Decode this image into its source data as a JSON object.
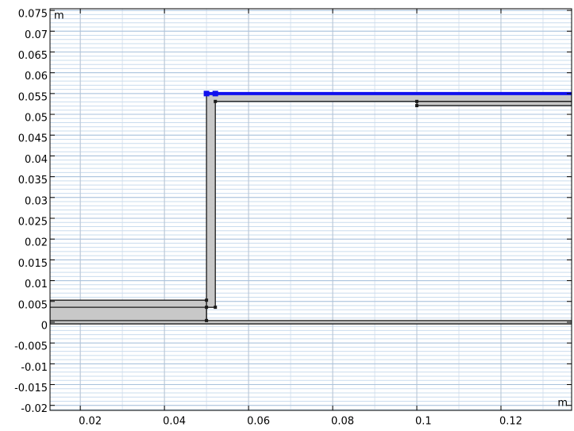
{
  "chart_data": {
    "type": "geometry",
    "x_unit": "m",
    "y_unit": "m",
    "xlim": [
      0.0128,
      0.1368
    ],
    "ylim": [
      -0.0212,
      0.0754
    ],
    "xticks": [
      0.02,
      0.04,
      0.06,
      0.08,
      0.1,
      0.12
    ],
    "yticks": [
      0.075,
      0.07,
      0.065,
      0.06,
      0.055,
      0.05,
      0.045,
      0.04,
      0.035,
      0.03,
      0.025,
      0.02,
      0.015,
      0.01,
      0.005,
      0,
      -0.005,
      -0.01,
      -0.015,
      -0.02
    ],
    "grid": true,
    "domain_color": "#c8c8c8",
    "edge_color": "#1a1a1a",
    "selection_color": "#1010ee",
    "domains": [
      [
        [
          0.0128,
          -0.0004
        ],
        [
          0.1368,
          -0.0004
        ],
        [
          0.1368,
          0.0004
        ],
        [
          0.0128,
          0.0004
        ]
      ],
      [
        [
          0.0128,
          0.0004
        ],
        [
          0.05,
          0.0004
        ],
        [
          0.05,
          0.0053
        ],
        [
          0.0128,
          0.0053
        ]
      ],
      [
        [
          0.05,
          0.0004
        ],
        [
          0.05,
          0.055
        ],
        [
          0.1368,
          0.055
        ],
        [
          0.1368,
          0.0531
        ],
        [
          0.0521,
          0.0531
        ],
        [
          0.0521,
          0.0036
        ],
        [
          0.05,
          0.0036
        ]
      ],
      [
        [
          0.1,
          0.0521
        ],
        [
          0.1368,
          0.0521
        ],
        [
          0.1368,
          0.0531
        ],
        [
          0.1,
          0.0531
        ]
      ]
    ],
    "edges": [
      [
        [
          0.0128,
          0.0036
        ],
        [
          0.0521,
          0.0036
        ]
      ]
    ],
    "selected_edges": [
      [
        [
          0.05,
          0.055
        ],
        [
          0.1368,
          0.055
        ]
      ]
    ],
    "vertices": [
      [
        0.05,
        0.0053
      ],
      [
        0.05,
        0.0036
      ],
      [
        0.0521,
        0.0036
      ],
      [
        0.05,
        0.0004
      ],
      [
        0.0521,
        0.0531
      ],
      [
        0.1,
        0.0531
      ],
      [
        0.1,
        0.0521
      ]
    ],
    "selected_vertices": [
      [
        0.05,
        0.055
      ],
      [
        0.0521,
        0.055
      ]
    ]
  }
}
